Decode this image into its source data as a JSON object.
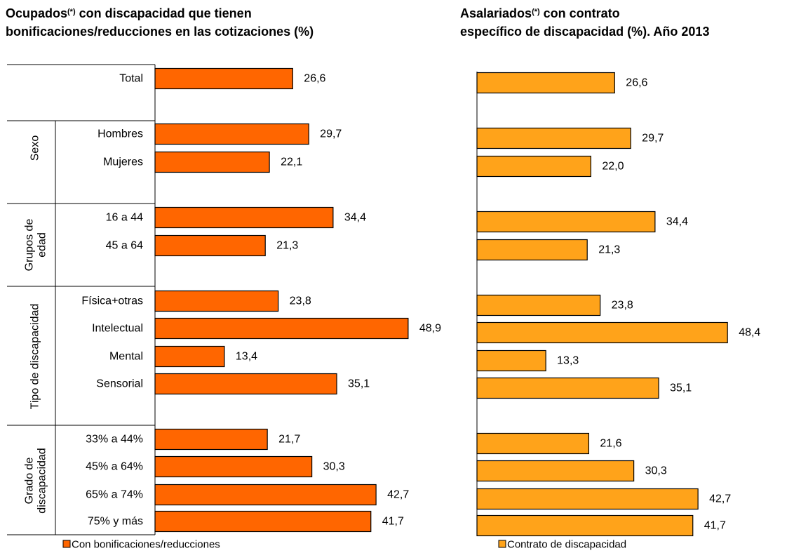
{
  "colors": {
    "left_bar": "#FF6600",
    "right_bar": "#FFA31A",
    "bar_stroke": "#000000"
  },
  "titles": {
    "left": {
      "l1_pre": "Ocupados",
      "l1_sup": "(*)",
      "l1_post": " con discapacidad que tienen",
      "l2": "bonificaciones/reducciones en las cotizaciones (%)"
    },
    "right": {
      "l1_pre": "Asalariados",
      "l1_sup": "(*)",
      "l1_post": " con contrato",
      "l2": "específico de discapacidad (%). Año 2013"
    }
  },
  "chart_data": [
    {
      "type": "bar",
      "orientation": "horizontal",
      "categories": [
        "Total",
        "Hombres",
        "Mujeres",
        "16 a 44",
        "45 a 64",
        "Física+otras",
        "Intelectual",
        "Mental",
        "Sensorial",
        "33% a 44%",
        "45% a 64%",
        "65% a 74%",
        "75% y más"
      ],
      "groups": [
        {
          "label": "",
          "categories": [
            "Total"
          ]
        },
        {
          "label": "Sexo",
          "categories": [
            "Hombres",
            "Mujeres"
          ]
        },
        {
          "label_lines": [
            "Grupos de",
            "edad"
          ],
          "categories": [
            "16 a 44",
            "45 a 64"
          ]
        },
        {
          "label": "Tipo de discapacidad",
          "categories": [
            "Física+otras",
            "Intelectual",
            "Mental",
            "Sensorial"
          ]
        },
        {
          "label_lines": [
            "Grado de",
            "discapacidad"
          ],
          "categories": [
            "33% a 44%",
            "45% a 64%",
            "65% a 74%",
            "75% y más"
          ]
        }
      ],
      "series": [
        {
          "name": "Con bonificaciones/reducciones",
          "values": [
            26.6,
            29.7,
            22.1,
            34.4,
            21.3,
            23.8,
            48.9,
            13.4,
            35.1,
            21.7,
            30.3,
            42.7,
            41.7
          ]
        }
      ],
      "value_labels": [
        "26,6",
        "29,7",
        "22,1",
        "34,4",
        "21,3",
        "23,8",
        "48,9",
        "13,4",
        "35,1",
        "21,7",
        "30,3",
        "42,7",
        "41,7"
      ],
      "legend": "bottom-left"
    },
    {
      "type": "bar",
      "orientation": "horizontal",
      "series": [
        {
          "name": "Contrato de discapacidad",
          "values": [
            26.6,
            29.7,
            22.0,
            34.4,
            21.3,
            23.8,
            48.4,
            13.3,
            35.1,
            21.6,
            30.3,
            42.7,
            41.7
          ]
        }
      ],
      "value_labels": [
        "26,6",
        "29,7",
        "22,0",
        "34,4",
        "21,3",
        "23,8",
        "48,4",
        "13,3",
        "35,1",
        "21,6",
        "30,3",
        "42,7",
        "41,7"
      ],
      "legend": "bottom-left"
    }
  ]
}
